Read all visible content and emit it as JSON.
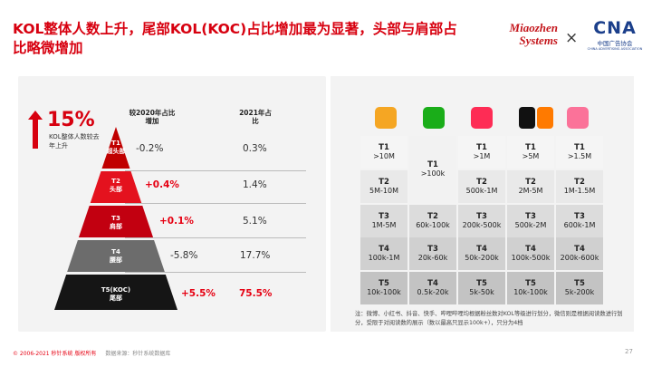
{
  "title": "KOL整体人数上升，尾部KOL(KOC)占比增加最为显著，头部与肩部占比略微增加",
  "logos": {
    "miaozhen_line1": "Miaozhen",
    "miaozhen_line2": "Systems",
    "times": "×",
    "cna_big": "CNA",
    "cna_cn": "中国广告协会",
    "cna_en": "CHINA ADVERTISING ASSOCIATION"
  },
  "kpi": {
    "value": "15%",
    "desc": "KOL整体人数较去年上升"
  },
  "headers": {
    "change": "较2020年占比增加",
    "share": "2021年占比"
  },
  "tiers": [
    {
      "code": "T1",
      "name": "超头部",
      "change": "-0.2%",
      "share": "0.3%",
      "highlight": false,
      "color": "#c00000"
    },
    {
      "code": "T2",
      "name": "头部",
      "change": "+0.4%",
      "share": "1.4%",
      "highlight": true,
      "color": "#e4121e"
    },
    {
      "code": "T3",
      "name": "肩部",
      "change": "+0.1%",
      "share": "5.1%",
      "highlight": true,
      "color": "#c20010"
    },
    {
      "code": "T4",
      "name": "腰部",
      "change": "-5.8%",
      "share": "17.7%",
      "highlight": false,
      "color": "#6c6c6c"
    },
    {
      "code": "T5(KOC)",
      "name": "尾部",
      "change": "+5.5%",
      "share": "75.5%",
      "highlight": true,
      "color": "#151515"
    }
  ],
  "platforms": [
    {
      "icon": "weibo-icon",
      "color": "#f5a623"
    },
    {
      "icon": "wechat-icon",
      "color": "#1aad19"
    },
    {
      "icon": "xiaohongshu-icon",
      "color": "#fe2c55"
    },
    {
      "icon": "douyin-kuaishou-icon",
      "color": "#111111"
    },
    {
      "icon": "bilibili-icon",
      "color": "#fb7299"
    }
  ],
  "grid": {
    "weibo": [
      [
        "T1",
        ">10M"
      ],
      [
        "T2",
        "5M-10M"
      ],
      [
        "T3",
        "1M-5M"
      ],
      [
        "T4",
        "100k-1M"
      ],
      [
        "T5",
        "10k-100k"
      ]
    ],
    "wechat_t1": [
      "T1",
      ">100k"
    ],
    "wechat": [
      [
        "T2",
        "60k-100k"
      ],
      [
        "T3",
        "20k-60k"
      ],
      [
        "T4",
        "0.5k-20k"
      ]
    ],
    "xhs": [
      [
        "T1",
        ">1M"
      ],
      [
        "T2",
        "500k-1M"
      ],
      [
        "T3",
        "200k-500k"
      ],
      [
        "T4",
        "50k-200k"
      ],
      [
        "T5",
        "5k-50k"
      ]
    ],
    "dy": [
      [
        "T1",
        ">5M"
      ],
      [
        "T2",
        "2M-5M"
      ],
      [
        "T3",
        "500k-2M"
      ],
      [
        "T4",
        "100k-500k"
      ],
      [
        "T5",
        "10k-100k"
      ]
    ],
    "bili": [
      [
        "T1",
        ">1.5M"
      ],
      [
        "T2",
        "1M-1.5M"
      ],
      [
        "T3",
        "600k-1M"
      ],
      [
        "T4",
        "200k-600k"
      ],
      [
        "T5",
        "5k-200k"
      ]
    ]
  },
  "note": "注：微博、小红书、抖音、快手、哔哩哔哩均根据粉丝数对KOL等级进行划分，微信则是根据阅读数进行划分，受限于对阅读数的展示（数以最高只显示100k+），只分为4档",
  "footer": {
    "copyright": "© 2006-2021 秒针系统 版权所有",
    "source": "数据来源：秒针系统数据库"
  },
  "page_number": "27"
}
